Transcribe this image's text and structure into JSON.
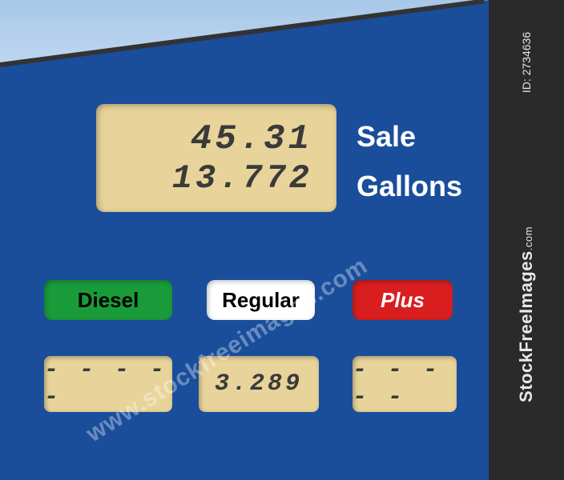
{
  "colors": {
    "pump_body": "#1a4e9b",
    "lcd_background": "#e8d49a",
    "lcd_text": "#3a3a3a",
    "label_text": "#ffffff",
    "diesel_bg": "#1a9b3a",
    "regular_bg": "#ffffff",
    "plus_bg": "#d81e1e",
    "strip_bg": "#2a2a2a",
    "sky_top": "#a8c8e8",
    "sky_bottom": "#c0d8f0"
  },
  "main_display": {
    "sale": "45.31",
    "gallons": "13.772"
  },
  "labels": {
    "sale": "Sale",
    "gallons": "Gallons"
  },
  "fuel_grades": [
    {
      "name": "Diesel",
      "price": "- - - - -"
    },
    {
      "name": "Regular",
      "price": "3.289"
    },
    {
      "name": "Plus",
      "price": "- - - - -"
    }
  ],
  "watermark": {
    "id_text": "ID: 2734636",
    "brand": "StockFreeImages",
    "brand_suffix": ".com",
    "diagonal": "www.stockfreeimages.com"
  },
  "typography": {
    "lcd_font": "Courier New, monospace",
    "lcd_style": "italic",
    "label_font": "Arial, sans-serif",
    "label_fontsize_pt": 27,
    "lcd_main_fontsize_pt": 33,
    "lcd_small_fontsize_pt": 22
  }
}
